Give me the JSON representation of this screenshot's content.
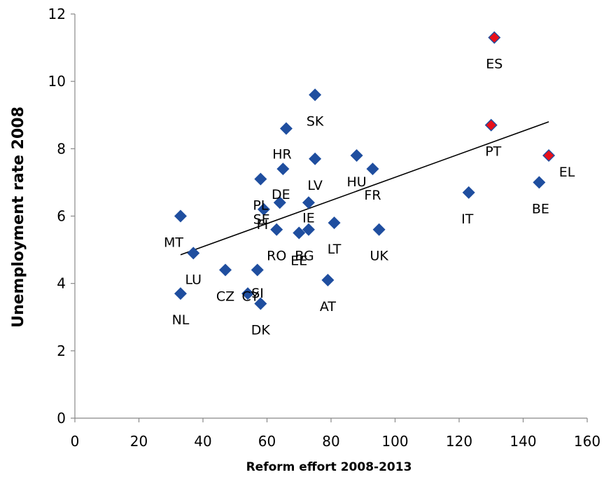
{
  "chart_data": {
    "type": "scatter",
    "xlabel": "Reform effort 2008-2013",
    "ylabel": "Unemployment rate 2008",
    "xlim": [
      0,
      160
    ],
    "ylim": [
      0,
      12
    ],
    "xticks": [
      0,
      20,
      40,
      60,
      80,
      100,
      120,
      140,
      160
    ],
    "yticks": [
      0,
      2,
      4,
      6,
      8,
      10,
      12
    ],
    "grid": false,
    "colors": {
      "marker": "#1f4e9f",
      "highlight": "#e8101a",
      "trendline": "#000000"
    },
    "points": [
      {
        "label": "ES",
        "x": 131,
        "y": 11.3,
        "highlight": true
      },
      {
        "label": "SK",
        "x": 75,
        "y": 9.6
      },
      {
        "label": "PT",
        "x": 130,
        "y": 8.7,
        "highlight": true
      },
      {
        "label": "HR",
        "x": 66,
        "y": 8.6
      },
      {
        "label": "HU",
        "x": 88,
        "y": 7.8
      },
      {
        "label": "EL",
        "x": 148,
        "y": 7.8,
        "highlight": true
      },
      {
        "label": "LV",
        "x": 75,
        "y": 7.7
      },
      {
        "label": "FR",
        "x": 93,
        "y": 7.4
      },
      {
        "label": "DE",
        "x": 65,
        "y": 7.4
      },
      {
        "label": "PL",
        "x": 58,
        "y": 7.1
      },
      {
        "label": "BE",
        "x": 145,
        "y": 7.0
      },
      {
        "label": "IT",
        "x": 123,
        "y": 6.7
      },
      {
        "label": "SE",
        "x": 64,
        "y": 6.4
      },
      {
        "label": "IE",
        "x": 73,
        "y": 6.4
      },
      {
        "label": "FI",
        "x": 59,
        "y": 6.2
      },
      {
        "label": "MT",
        "x": 33,
        "y": 6.0
      },
      {
        "label": "LT",
        "x": 81,
        "y": 5.8
      },
      {
        "label": "RO",
        "x": 63,
        "y": 5.6
      },
      {
        "label": "BG",
        "x": 73,
        "y": 5.6
      },
      {
        "label": "UK",
        "x": 95,
        "y": 5.6
      },
      {
        "label": "EE",
        "x": 70,
        "y": 5.5
      },
      {
        "label": "LU",
        "x": 37,
        "y": 4.9
      },
      {
        "label": "CZ",
        "x": 47,
        "y": 4.4
      },
      {
        "label": "CY",
        "x": 57,
        "y": 4.4
      },
      {
        "label": "AT",
        "x": 79,
        "y": 4.1
      },
      {
        "label": "SI",
        "x": 54,
        "y": 3.7
      },
      {
        "label": "NL",
        "x": 33,
        "y": 3.7
      },
      {
        "label": "DK",
        "x": 58,
        "y": 3.4
      }
    ],
    "trendline": {
      "x": [
        33,
        148
      ],
      "y": [
        4.85,
        8.8
      ]
    }
  }
}
